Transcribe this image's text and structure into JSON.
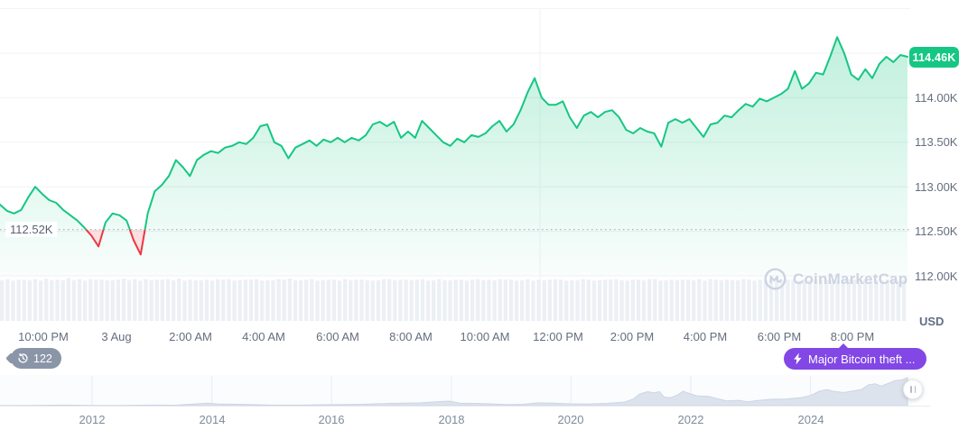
{
  "app": {
    "watermark": "CoinMarketCap"
  },
  "colors": {
    "green": "#16c784",
    "red": "#ea3943",
    "purple": "#8247e5",
    "badge_gray": "#8a95a8",
    "axis_text": "#646e7e",
    "grid": "#f0f2f6",
    "volume_bar": "#ecf0f5",
    "minimap_fill": "#dde3ed",
    "minimap_edge": "#ccd5e3"
  },
  "price_axis": {
    "unit": "USD",
    "current_badge": "114.46K",
    "labels": [
      "114.00K",
      "113.50K",
      "113.00K",
      "112.50K",
      "112.00K"
    ],
    "label_prices_k": [
      114.0,
      113.5,
      113.0,
      112.5,
      112.0
    ]
  },
  "reference": {
    "label": "112.52K",
    "price_k": 112.52
  },
  "time_axis": {
    "labels": [
      "10:00 PM",
      "3 Aug",
      "2:00 AM",
      "4:00 AM",
      "6:00 AM",
      "8:00 AM",
      "10:00 AM",
      "12:00 PM",
      "2:00 PM",
      "4:00 PM",
      "6:00 PM",
      "8:00 PM"
    ]
  },
  "annotations": {
    "count_badge": "122",
    "news_badge": "Major Bitcoin theft ..."
  },
  "range_slider": {
    "years": [
      "2012",
      "2014",
      "2016",
      "2018",
      "2020",
      "2022",
      "2024"
    ]
  },
  "chart_data": {
    "type": "area",
    "title": "Bitcoin price, last 24 hours (2-3 Aug)",
    "unit": "USD",
    "current_price_k": 114.46,
    "reference_price_k": 112.52,
    "ylim_k": [
      112.0,
      115.0
    ],
    "y_gridlines_k": [
      115.0,
      114.5,
      114.0,
      113.5,
      113.0,
      112.5,
      112.0
    ],
    "x_tick_labels": [
      "10:00 PM",
      "3 Aug",
      "2:00 AM",
      "4:00 AM",
      "6:00 AM",
      "8:00 AM",
      "10:00 AM",
      "12:00 PM",
      "2:00 PM",
      "4:00 PM",
      "6:00 PM",
      "8:00 PM"
    ],
    "series_prices_k": [
      112.8,
      112.73,
      112.7,
      112.74,
      112.88,
      113.0,
      112.92,
      112.85,
      112.82,
      112.74,
      112.68,
      112.62,
      112.54,
      112.45,
      112.33,
      112.6,
      112.7,
      112.68,
      112.62,
      112.4,
      112.24,
      112.7,
      112.95,
      113.02,
      113.12,
      113.3,
      113.22,
      113.12,
      113.3,
      113.36,
      113.4,
      113.38,
      113.44,
      113.46,
      113.5,
      113.48,
      113.55,
      113.68,
      113.7,
      113.5,
      113.46,
      113.32,
      113.44,
      113.48,
      113.52,
      113.46,
      113.53,
      113.5,
      113.55,
      113.5,
      113.55,
      113.52,
      113.58,
      113.7,
      113.73,
      113.68,
      113.73,
      113.55,
      113.62,
      113.55,
      113.74,
      113.66,
      113.58,
      113.5,
      113.46,
      113.54,
      113.5,
      113.58,
      113.56,
      113.6,
      113.68,
      113.74,
      113.62,
      113.7,
      113.86,
      114.06,
      114.22,
      114.0,
      113.92,
      113.92,
      113.96,
      113.78,
      113.66,
      113.8,
      113.84,
      113.78,
      113.84,
      113.86,
      113.78,
      113.64,
      113.6,
      113.66,
      113.62,
      113.6,
      113.45,
      113.72,
      113.76,
      113.72,
      113.76,
      113.66,
      113.56,
      113.7,
      113.72,
      113.8,
      113.78,
      113.86,
      113.93,
      113.9,
      113.99,
      113.96,
      114.0,
      114.04,
      114.1,
      114.3,
      114.1,
      114.16,
      114.28,
      114.26,
      114.46,
      114.68,
      114.5,
      114.26,
      114.2,
      114.32,
      114.22,
      114.38,
      114.46,
      114.4,
      114.48,
      114.46
    ],
    "volume_profile": "4635546374548463655445746364556473544536563455634465744563455364554346645545634644553564546553463545653446534556435546634545546365454465354464553645544366545344653 5",
    "minimap": {
      "type": "area",
      "year_ticks": [
        2012,
        2014,
        2016,
        2018,
        2020,
        2022,
        2024
      ],
      "x_years": [
        2010.45,
        2011,
        2011.5,
        2012,
        2012.5,
        2013,
        2013.4,
        2013.92,
        2014.1,
        2014.5,
        2015,
        2015.5,
        2016,
        2016.5,
        2017,
        2017.5,
        2017.75,
        2017.96,
        2018.15,
        2018.4,
        2018.7,
        2018.95,
        2019.2,
        2019.45,
        2019.7,
        2020,
        2020.25,
        2020.6,
        2020.9,
        2021.05,
        2021.15,
        2021.28,
        2021.38,
        2021.48,
        2021.55,
        2021.65,
        2021.78,
        2021.87,
        2021.97,
        2022.1,
        2022.3,
        2022.45,
        2022.6,
        2022.8,
        2022.95,
        2023.1,
        2023.35,
        2023.6,
        2023.85,
        2024.0,
        2024.15,
        2024.27,
        2024.4,
        2024.55,
        2024.7,
        2024.85,
        2024.97,
        2025.08,
        2025.18,
        2025.3,
        2025.42,
        2025.52,
        2025.62
      ],
      "values_norm": [
        0.004,
        0.006,
        0.018,
        0.008,
        0.008,
        0.02,
        0.015,
        0.09,
        0.06,
        0.045,
        0.02,
        0.02,
        0.035,
        0.05,
        0.08,
        0.1,
        0.14,
        0.16,
        0.09,
        0.08,
        0.06,
        0.035,
        0.05,
        0.1,
        0.09,
        0.065,
        0.055,
        0.08,
        0.13,
        0.25,
        0.42,
        0.5,
        0.46,
        0.5,
        0.31,
        0.28,
        0.38,
        0.52,
        0.44,
        0.35,
        0.33,
        0.25,
        0.17,
        0.19,
        0.14,
        0.18,
        0.23,
        0.24,
        0.29,
        0.36,
        0.52,
        0.57,
        0.51,
        0.47,
        0.52,
        0.58,
        0.75,
        0.78,
        0.7,
        0.8,
        0.9,
        0.92,
        1.0
      ]
    }
  }
}
